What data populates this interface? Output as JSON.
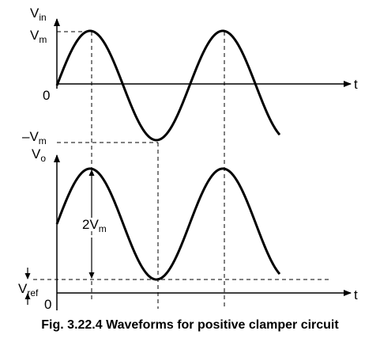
{
  "top_plot": {
    "y_axis_label": "V",
    "y_axis_sub": "in",
    "peak_label": "V",
    "peak_sub": "m",
    "trough_label": "–V",
    "trough_sub": "m",
    "origin_label": "0",
    "x_axis_label": "t"
  },
  "bottom_plot": {
    "y_axis_label": "V",
    "y_axis_sub": "o",
    "amplitude_label": "2V",
    "amplitude_sub": "m",
    "ref_label": "V",
    "ref_sub": "ref",
    "origin_label": "0",
    "x_axis_label": "t"
  },
  "caption": "Fig. 3.22.4 Waveforms for positive clamper circuit"
}
